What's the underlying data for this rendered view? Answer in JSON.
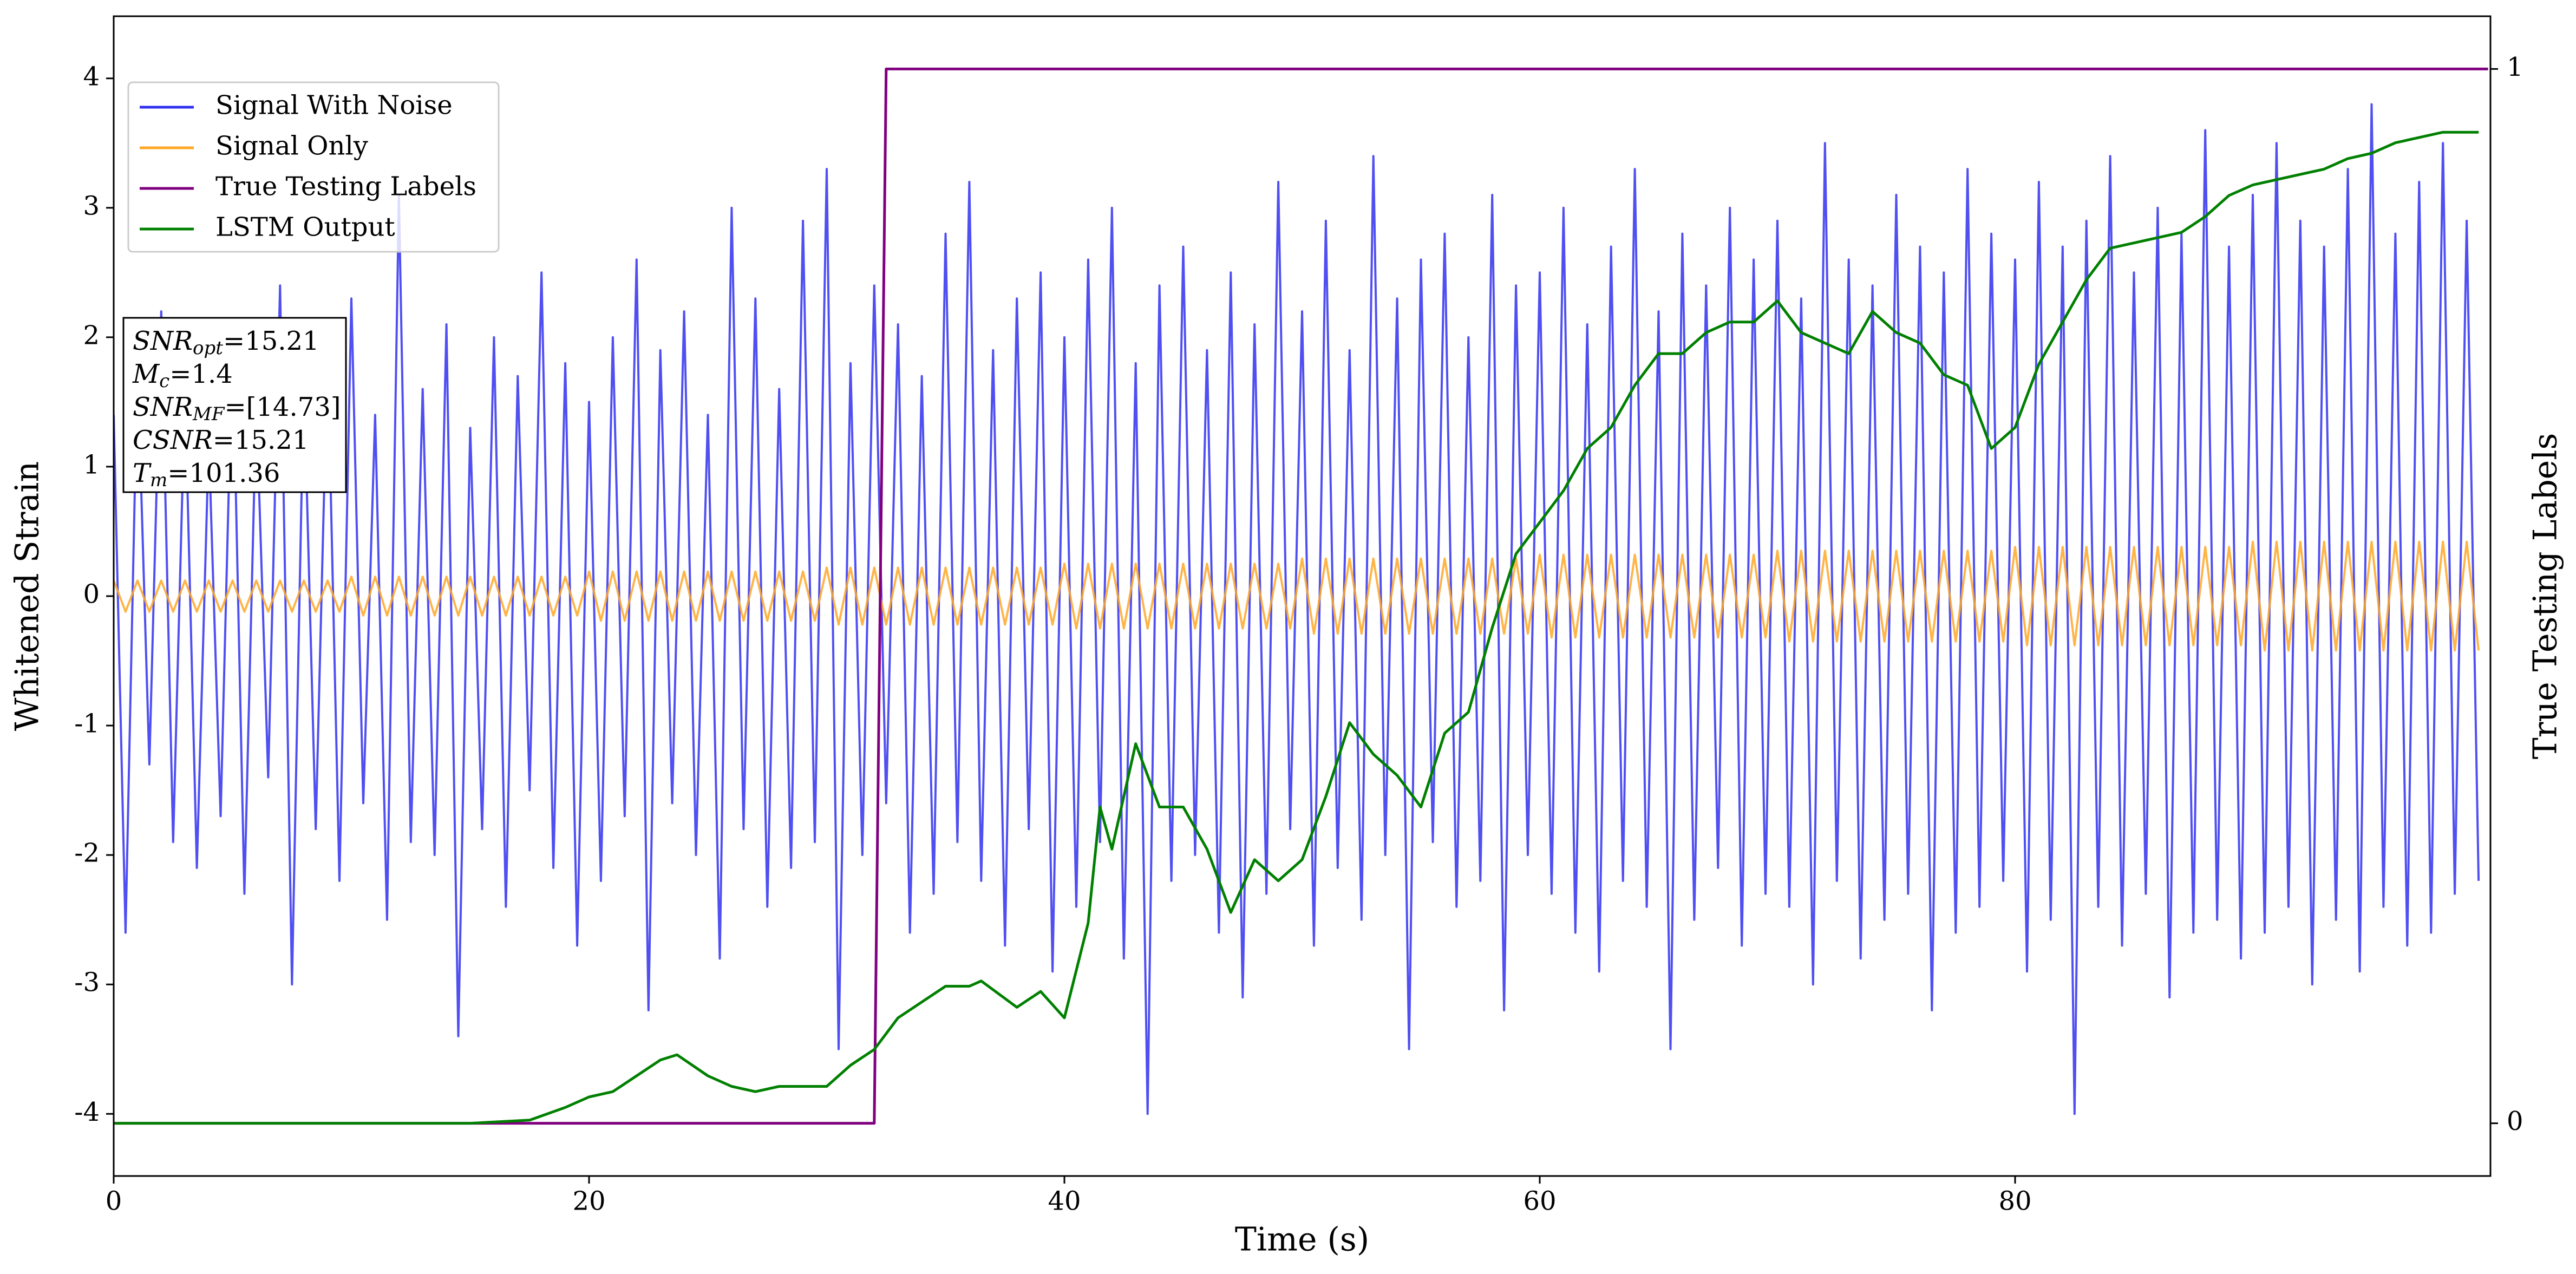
{
  "chart_data": {
    "type": "line",
    "xlabel": "Time (s)",
    "ylabel": "Whitened Strain",
    "y2label": "True Testing Labels",
    "xlim": [
      0,
      100
    ],
    "xticks": [
      0,
      20,
      40,
      60,
      80
    ],
    "ylim": [
      -4.48,
      4.48
    ],
    "yticks": [
      -4,
      -3,
      -2,
      -1,
      0,
      1,
      2,
      3,
      4
    ],
    "y2lim": [
      -0.05,
      1.05
    ],
    "y2ticks": [
      0,
      1
    ],
    "legend": "upper left",
    "annotation": [
      {
        "text": "SNR",
        "sub": "opt",
        "value": "=15.21"
      },
      {
        "text": "M",
        "sub": "c",
        "value": "=1.4"
      },
      {
        "text": "SNR",
        "sub": "MF",
        "value": "=[14.73]"
      },
      {
        "text": "CSNR",
        "value": "=15.21"
      },
      {
        "text": "T",
        "sub": "m",
        "value": "=101.36"
      }
    ],
    "x": [
      0,
      0.5,
      1,
      1.5,
      2,
      2.5,
      3,
      3.5,
      4,
      4.5,
      5,
      5.5,
      6,
      6.5,
      7,
      7.5,
      8,
      8.5,
      9,
      9.5,
      10,
      10.5,
      11,
      11.5,
      12,
      12.5,
      13,
      13.5,
      14,
      14.5,
      15,
      15.5,
      16,
      16.5,
      17,
      17.5,
      18,
      18.5,
      19,
      19.5,
      20,
      20.5,
      21,
      21.5,
      22,
      22.5,
      23,
      23.5,
      24,
      24.5,
      25,
      25.5,
      26,
      26.5,
      27,
      27.5,
      28,
      28.5,
      29,
      29.5,
      30,
      30.5,
      31,
      31.5,
      32,
      32.5,
      33,
      33.5,
      34,
      34.5,
      35,
      35.5,
      36,
      36.5,
      37,
      37.5,
      38,
      38.5,
      39,
      39.5,
      40,
      40.5,
      41,
      41.5,
      42,
      42.5,
      43,
      43.5,
      44,
      44.5,
      45,
      45.5,
      46,
      46.5,
      47,
      47.5,
      48,
      48.5,
      49,
      49.5,
      50,
      50.5,
      51,
      51.5,
      52,
      52.5,
      53,
      53.5,
      54,
      54.5,
      55,
      55.5,
      56,
      56.5,
      57,
      57.5,
      58,
      58.5,
      59,
      59.5,
      60,
      60.5,
      61,
      61.5,
      62,
      62.5,
      63,
      63.5,
      64,
      64.5,
      65,
      65.5,
      66,
      66.5,
      67,
      67.5,
      68,
      68.5,
      69,
      69.5,
      70,
      70.5,
      71,
      71.5,
      72,
      72.5,
      73,
      73.5,
      74,
      74.5,
      75,
      75.5,
      76,
      76.5,
      77,
      77.5,
      78,
      78.5,
      79,
      79.5,
      80,
      80.5,
      81,
      81.5,
      82,
      82.5,
      83,
      83.5,
      84,
      84.5,
      85,
      85.5,
      86,
      86.5,
      87,
      87.5,
      88,
      88.5,
      89,
      89.5,
      90,
      90.5,
      91,
      91.5,
      92,
      92.5,
      93,
      93.5,
      94,
      94.5,
      95,
      95.5,
      96,
      96.5,
      97,
      97.5,
      98,
      98.5,
      99,
      99.5
    ],
    "series": [
      {
        "name": "Signal With Noise",
        "color": "#3030f0",
        "values": [
          1.4,
          -2.6,
          1.8,
          -1.3,
          2.2,
          -1.9,
          1.6,
          -2.1,
          1.2,
          -1.7,
          2.0,
          -2.3,
          1.5,
          -1.4,
          2.4,
          -3.0,
          1.7,
          -1.8,
          1.9,
          -2.2,
          2.3,
          -1.6,
          1.4,
          -2.5,
          3.1,
          -1.9,
          1.6,
          -2.0,
          2.1,
          -3.4,
          1.3,
          -1.8,
          2.0,
          -2.4,
          1.7,
          -1.5,
          2.5,
          -2.1,
          1.8,
          -2.7,
          1.5,
          -2.2,
          2.0,
          -1.7,
          2.6,
          -3.2,
          1.9,
          -1.6,
          2.2,
          -2.0,
          1.4,
          -2.8,
          3.0,
          -1.8,
          2.3,
          -2.4,
          1.6,
          -2.1,
          2.9,
          -1.9,
          3.3,
          -3.5,
          1.8,
          -2.0,
          2.4,
          -1.6,
          2.1,
          -2.6,
          1.7,
          -2.3,
          2.8,
          -1.9,
          3.2,
          -2.2,
          1.9,
          -2.7,
          2.3,
          -1.8,
          2.5,
          -2.9,
          2.0,
          -2.4,
          2.6,
          -1.9,
          3.0,
          -2.8,
          1.8,
          -4.0,
          2.4,
          -2.2,
          2.7,
          -2.0,
          1.9,
          -2.6,
          2.5,
          -3.1,
          2.1,
          -2.3,
          3.2,
          -1.8,
          2.2,
          -2.7,
          2.9,
          -2.1,
          1.9,
          -2.5,
          3.4,
          -2.0,
          2.3,
          -3.5,
          2.6,
          -1.9,
          2.8,
          -2.4,
          2.0,
          -2.2,
          3.1,
          -3.2,
          2.4,
          -2.0,
          2.5,
          -2.3,
          3.0,
          -2.6,
          2.1,
          -2.9,
          2.7,
          -2.2,
          3.3,
          -2.4,
          2.2,
          -3.5,
          2.8,
          -2.5,
          2.4,
          -2.1,
          3.0,
          -2.7,
          2.6,
          -2.3,
          2.9,
          -2.4,
          2.3,
          -3.0,
          3.5,
          -2.2,
          2.6,
          -2.8,
          2.4,
          -2.5,
          3.1,
          -2.3,
          2.7,
          -3.2,
          2.5,
          -2.6,
          3.3,
          -2.4,
          2.8,
          -2.2,
          2.6,
          -2.9,
          3.2,
          -2.5,
          2.7,
          -4.0,
          2.9,
          -2.4,
          3.4,
          -2.7,
          2.5,
          -2.3,
          3.0,
          -3.1,
          2.8,
          -2.6,
          3.6,
          -2.5,
          2.7,
          -2.8,
          3.1,
          -2.6,
          3.5,
          -2.4,
          2.9,
          -3.0,
          2.7,
          -2.5,
          3.3,
          -2.9,
          3.8,
          -2.4,
          2.8,
          -2.7,
          3.2,
          -2.6,
          3.5,
          -2.3,
          2.9,
          -2.2
        ]
      },
      {
        "name": "Signal Only",
        "color": "#ffa726",
        "values": [
          0.12,
          -0.12,
          0.12,
          -0.12,
          0.12,
          -0.12,
          0.12,
          -0.12,
          0.12,
          -0.12,
          0.12,
          -0.12,
          0.12,
          -0.12,
          0.12,
          -0.12,
          0.12,
          -0.12,
          0.12,
          -0.12,
          0.15,
          -0.15,
          0.15,
          -0.15,
          0.15,
          -0.15,
          0.15,
          -0.15,
          0.15,
          -0.15,
          0.15,
          -0.15,
          0.15,
          -0.15,
          0.15,
          -0.15,
          0.15,
          -0.15,
          0.15,
          -0.15,
          0.19,
          -0.19,
          0.19,
          -0.19,
          0.19,
          -0.19,
          0.19,
          -0.19,
          0.19,
          -0.19,
          0.19,
          -0.19,
          0.19,
          -0.19,
          0.19,
          -0.19,
          0.19,
          -0.19,
          0.19,
          -0.19,
          0.22,
          -0.22,
          0.22,
          -0.22,
          0.22,
          -0.22,
          0.22,
          -0.22,
          0.22,
          -0.22,
          0.22,
          -0.22,
          0.22,
          -0.22,
          0.22,
          -0.22,
          0.22,
          -0.22,
          0.22,
          -0.22,
          0.25,
          -0.25,
          0.25,
          -0.25,
          0.25,
          -0.25,
          0.25,
          -0.25,
          0.25,
          -0.25,
          0.25,
          -0.25,
          0.25,
          -0.25,
          0.25,
          -0.25,
          0.25,
          -0.25,
          0.25,
          -0.25,
          0.29,
          -0.29,
          0.29,
          -0.29,
          0.29,
          -0.29,
          0.29,
          -0.29,
          0.29,
          -0.29,
          0.29,
          -0.29,
          0.29,
          -0.29,
          0.29,
          -0.29,
          0.29,
          -0.29,
          0.29,
          -0.29,
          0.32,
          -0.32,
          0.32,
          -0.32,
          0.32,
          -0.32,
          0.32,
          -0.32,
          0.32,
          -0.32,
          0.32,
          -0.32,
          0.32,
          -0.32,
          0.32,
          -0.32,
          0.32,
          -0.32,
          0.32,
          -0.32,
          0.35,
          -0.35,
          0.35,
          -0.35,
          0.35,
          -0.35,
          0.35,
          -0.35,
          0.35,
          -0.35,
          0.35,
          -0.35,
          0.35,
          -0.35,
          0.35,
          -0.35,
          0.35,
          -0.35,
          0.35,
          -0.35,
          0.38,
          -0.38,
          0.38,
          -0.38,
          0.38,
          -0.38,
          0.38,
          -0.38,
          0.38,
          -0.38,
          0.38,
          -0.38,
          0.38,
          -0.38,
          0.38,
          -0.38,
          0.38,
          -0.38,
          0.38,
          -0.38,
          0.42,
          -0.42,
          0.42,
          -0.42,
          0.42,
          -0.42,
          0.42,
          -0.42,
          0.42,
          -0.42,
          0.42,
          -0.42,
          0.42,
          -0.42,
          0.42,
          -0.42,
          0.42,
          -0.42,
          0.42,
          -0.42
        ]
      },
      {
        "name": "True Testing Labels",
        "color": "#800080",
        "axis": "y2",
        "x": [
          0,
          32,
          32.5,
          99.9
        ],
        "values": [
          0,
          0,
          1,
          1
        ]
      },
      {
        "name": "LSTM Output",
        "color": "#008000",
        "axis": "y2",
        "x": [
          0,
          15,
          17.5,
          19,
          20,
          21,
          22,
          23,
          23.7,
          25,
          26,
          27,
          28,
          30,
          31,
          32,
          33,
          34,
          35,
          36,
          36.5,
          38,
          39,
          40,
          41,
          41.5,
          42,
          43,
          44,
          45,
          46,
          47,
          48,
          49,
          50,
          51,
          52,
          53,
          54,
          55,
          56,
          57,
          58,
          59,
          60,
          61,
          62,
          63,
          64,
          65,
          66,
          67,
          68,
          69,
          70,
          71,
          72,
          73,
          74,
          75,
          76,
          77,
          78,
          79,
          80,
          81,
          82,
          83,
          84,
          85,
          86,
          87,
          88,
          89,
          90,
          91,
          92,
          93,
          94,
          95,
          96,
          97,
          98,
          99.5
        ],
        "values": [
          0,
          0,
          0.003,
          0.015,
          0.025,
          0.03,
          0.045,
          0.06,
          0.065,
          0.045,
          0.035,
          0.03,
          0.035,
          0.035,
          0.055,
          0.07,
          0.1,
          0.115,
          0.13,
          0.13,
          0.135,
          0.11,
          0.125,
          0.1,
          0.19,
          0.3,
          0.26,
          0.36,
          0.3,
          0.3,
          0.26,
          0.2,
          0.25,
          0.23,
          0.25,
          0.31,
          0.38,
          0.35,
          0.33,
          0.3,
          0.37,
          0.39,
          0.47,
          0.54,
          0.57,
          0.6,
          0.64,
          0.66,
          0.7,
          0.73,
          0.73,
          0.75,
          0.76,
          0.76,
          0.78,
          0.75,
          0.74,
          0.73,
          0.77,
          0.75,
          0.74,
          0.71,
          0.7,
          0.64,
          0.66,
          0.72,
          0.76,
          0.8,
          0.83,
          0.835,
          0.84,
          0.845,
          0.86,
          0.88,
          0.89,
          0.895,
          0.9,
          0.905,
          0.915,
          0.92,
          0.93,
          0.935,
          0.94,
          0.94
        ]
      }
    ]
  }
}
